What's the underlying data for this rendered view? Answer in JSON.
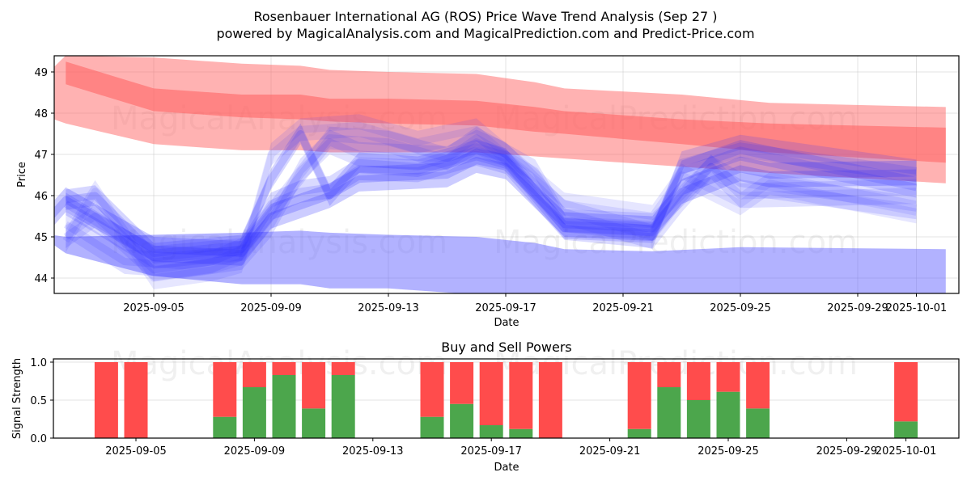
{
  "header": {
    "title": "Rosenbauer International AG (ROS) Price Wave Trend Analysis (Sep 27 )",
    "subtitle": "powered by MagicalAnalysis.com and MagicalPrediction.com and Predict-Price.com"
  },
  "watermarks": [
    "MagicalAnalysis.com",
    "MagicalPrediction.com"
  ],
  "chart_data": [
    {
      "type": "area",
      "title": "Rosenbauer International AG (ROS) Price Wave Trend Analysis (Sep 27 )",
      "xlabel": "Date",
      "ylabel": "Price",
      "ylim": [
        43.6,
        49.4
      ],
      "xlim": [
        "2025-09-01",
        "2025-10-02"
      ],
      "yticks": [
        44,
        45,
        46,
        47,
        48,
        49
      ],
      "xticks": [
        "2025-09-05",
        "2025-09-09",
        "2025-09-13",
        "2025-09-17",
        "2025-09-21",
        "2025-09-25",
        "2025-09-29",
        "2025-10-01"
      ],
      "grid": true,
      "colors": {
        "sell_band": "#ff0000",
        "buy_band": "#0000ff"
      },
      "bands": [
        {
          "name": "red-outer-band",
          "color": "#ff6666",
          "opacity": 0.5,
          "x": [
            "2025-09-01",
            "2025-09-02",
            "2025-09-05",
            "2025-09-08",
            "2025-09-10",
            "2025-09-11",
            "2025-09-13",
            "2025-09-16",
            "2025-09-18",
            "2025-09-19",
            "2025-09-23",
            "2025-09-26",
            "2025-10-02"
          ],
          "upper": [
            48.7,
            49.4,
            49.35,
            49.2,
            49.15,
            49.05,
            49.0,
            48.95,
            48.75,
            48.6,
            48.45,
            48.25,
            48.15
          ],
          "lower": [
            48.0,
            47.75,
            47.25,
            47.1,
            47.1,
            47.05,
            47.05,
            47.05,
            46.95,
            46.9,
            46.7,
            46.55,
            46.3
          ]
        },
        {
          "name": "red-inner-band",
          "color": "#ff6666",
          "opacity": 0.6,
          "x": [
            "2025-09-02",
            "2025-09-05",
            "2025-09-08",
            "2025-09-10",
            "2025-09-11",
            "2025-09-13",
            "2025-09-16",
            "2025-09-18",
            "2025-09-19",
            "2025-09-23",
            "2025-09-26",
            "2025-10-02"
          ],
          "upper": [
            49.25,
            48.6,
            48.45,
            48.45,
            48.35,
            48.35,
            48.3,
            48.15,
            48.05,
            47.85,
            47.75,
            47.65
          ],
          "lower": [
            48.7,
            48.05,
            47.9,
            47.85,
            47.8,
            47.75,
            47.7,
            47.55,
            47.5,
            47.25,
            47.05,
            46.8
          ]
        },
        {
          "name": "blue-lower-band",
          "color": "#6666ff",
          "opacity": 0.5,
          "x": [
            "2025-09-01",
            "2025-09-02",
            "2025-09-05",
            "2025-09-08",
            "2025-09-10",
            "2025-09-11",
            "2025-09-13",
            "2025-09-16",
            "2025-09-18",
            "2025-09-19",
            "2025-09-22",
            "2025-09-25",
            "2025-10-02"
          ],
          "upper": [
            45.1,
            45.0,
            45.05,
            45.1,
            45.15,
            45.1,
            45.05,
            45.0,
            44.85,
            44.7,
            44.65,
            44.75,
            44.7
          ],
          "lower": [
            45.1,
            44.6,
            44.05,
            43.85,
            43.85,
            43.75,
            43.75,
            43.6,
            43.6,
            43.6,
            43.6,
            43.6,
            43.6
          ]
        }
      ],
      "waves": [
        {
          "name": "wave-1",
          "opacity": 0.25,
          "width": 0.6,
          "x": [
            "2025-09-01",
            "2025-09-02",
            "2025-09-05",
            "2025-09-08",
            "2025-09-09",
            "2025-09-11",
            "2025-09-12",
            "2025-09-15",
            "2025-09-16",
            "2025-09-17",
            "2025-09-19",
            "2025-09-22",
            "2025-09-23",
            "2025-09-25",
            "2025-09-26",
            "2025-10-01"
          ],
          "y": [
            45.1,
            45.9,
            44.7,
            44.6,
            45.5,
            46.0,
            46.4,
            46.5,
            46.85,
            46.7,
            45.3,
            45.2,
            46.1,
            46.65,
            46.5,
            46.55
          ]
        },
        {
          "name": "wave-2",
          "opacity": 0.2,
          "width": 0.5,
          "x": [
            "2025-09-02",
            "2025-09-03",
            "2025-09-05",
            "2025-09-08",
            "2025-09-09",
            "2025-09-10",
            "2025-09-11",
            "2025-09-12",
            "2025-09-14",
            "2025-09-16",
            "2025-09-17",
            "2025-09-19",
            "2025-09-22",
            "2025-09-23",
            "2025-09-25",
            "2025-10-01"
          ],
          "y": [
            45.9,
            46.0,
            44.6,
            44.8,
            46.4,
            47.5,
            46.0,
            46.8,
            46.7,
            47.1,
            46.9,
            45.2,
            45.1,
            46.6,
            47.1,
            46.2
          ]
        },
        {
          "name": "wave-3",
          "opacity": 0.18,
          "width": 0.55,
          "x": [
            "2025-09-02",
            "2025-09-05",
            "2025-09-08",
            "2025-09-09",
            "2025-09-10",
            "2025-09-11",
            "2025-09-12",
            "2025-09-14",
            "2025-09-16",
            "2025-09-17",
            "2025-09-19",
            "2025-09-22",
            "2025-09-23",
            "2025-09-25",
            "2025-10-01"
          ],
          "y": [
            45.8,
            44.5,
            44.7,
            45.8,
            46.1,
            46.2,
            46.65,
            46.6,
            47.0,
            46.8,
            45.2,
            45.0,
            46.8,
            47.2,
            46.6
          ]
        },
        {
          "name": "wave-4",
          "opacity": 0.15,
          "width": 0.6,
          "x": [
            "2025-09-02",
            "2025-09-04",
            "2025-09-06",
            "2025-09-08",
            "2025-09-09",
            "2025-09-10",
            "2025-09-11",
            "2025-09-12",
            "2025-09-15",
            "2025-09-16",
            "2025-09-17",
            "2025-09-19",
            "2025-09-22",
            "2025-09-23",
            "2025-09-24",
            "2025-09-25",
            "2025-10-01"
          ],
          "y": [
            45.3,
            44.4,
            44.3,
            44.5,
            45.3,
            46.6,
            47.3,
            47.0,
            46.9,
            47.3,
            47.0,
            45.6,
            45.0,
            45.9,
            46.7,
            46.0,
            46.1
          ]
        },
        {
          "name": "wave-5",
          "opacity": 0.15,
          "width": 0.55,
          "x": [
            "2025-09-02",
            "2025-09-03",
            "2025-09-05",
            "2025-09-07",
            "2025-09-08",
            "2025-09-09",
            "2025-09-11",
            "2025-09-13",
            "2025-09-15",
            "2025-09-16",
            "2025-09-18",
            "2025-09-19",
            "2025-09-22",
            "2025-09-24",
            "2025-09-25",
            "2025-10-01"
          ],
          "y": [
            45.0,
            45.5,
            44.2,
            44.4,
            44.7,
            45.6,
            47.4,
            47.3,
            46.9,
            47.4,
            46.6,
            45.4,
            45.3,
            46.7,
            46.3,
            45.7
          ]
        },
        {
          "name": "wave-6",
          "opacity": 0.12,
          "width": 0.55,
          "x": [
            "2025-09-02",
            "2025-09-03",
            "2025-09-05",
            "2025-09-07",
            "2025-09-08",
            "2025-09-09",
            "2025-09-10",
            "2025-09-12",
            "2025-09-14",
            "2025-09-16",
            "2025-09-17",
            "2025-09-19",
            "2025-09-22",
            "2025-09-23",
            "2025-09-25",
            "2025-09-26",
            "2025-10-01"
          ],
          "y": [
            44.9,
            46.1,
            44.0,
            44.2,
            44.4,
            47.0,
            47.6,
            47.7,
            47.3,
            47.6,
            47.0,
            45.8,
            45.5,
            46.5,
            45.8,
            46.3,
            45.6
          ]
        }
      ]
    },
    {
      "type": "bar",
      "title": "Buy and Sell Powers",
      "xlabel": "Date",
      "ylabel": "Signal Strength",
      "ylim": [
        0,
        1.05
      ],
      "yticks": [
        0.0,
        0.5,
        1.0
      ],
      "xticks": [
        "2025-09-05",
        "2025-09-09",
        "2025-09-13",
        "2025-09-17",
        "2025-09-21",
        "2025-09-25",
        "2025-09-29",
        "2025-10-01"
      ],
      "grid": true,
      "colors": {
        "buy": "#4ca64c",
        "sell": "#ff4c4c"
      },
      "categories": [
        "2025-09-04",
        "2025-09-05",
        "2025-09-08",
        "2025-09-09",
        "2025-09-10",
        "2025-09-11",
        "2025-09-12",
        "2025-09-15",
        "2025-09-16",
        "2025-09-17",
        "2025-09-18",
        "2025-09-19",
        "2025-09-22",
        "2025-09-23",
        "2025-09-24",
        "2025-09-25",
        "2025-09-26",
        "2025-10-01"
      ],
      "series": [
        {
          "name": "Buy Power",
          "values": [
            0.0,
            0.0,
            0.28,
            0.67,
            0.83,
            0.39,
            0.83,
            0.28,
            0.45,
            0.17,
            0.12,
            0.0,
            0.12,
            0.67,
            0.5,
            0.61,
            0.39,
            0.22
          ]
        },
        {
          "name": "Sell Power",
          "values": [
            1.0,
            1.0,
            0.72,
            0.33,
            0.17,
            0.61,
            0.17,
            0.72,
            0.55,
            0.83,
            0.88,
            1.0,
            0.88,
            0.33,
            0.5,
            0.39,
            0.61,
            0.78
          ]
        }
      ]
    }
  ]
}
